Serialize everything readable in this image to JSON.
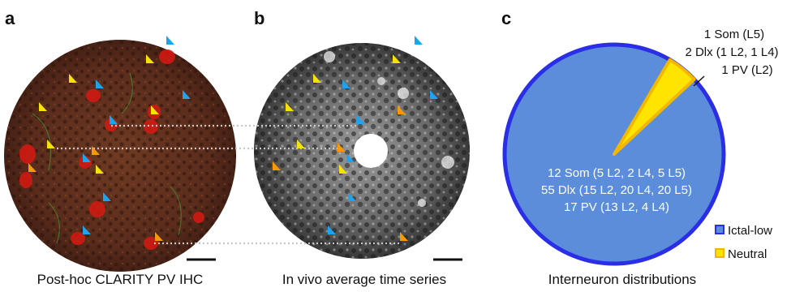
{
  "panels": {
    "a": {
      "letter": "a",
      "caption": "Post-hoc CLARITY PV IHC"
    },
    "b": {
      "letter": "b",
      "caption": "In vivo average time series"
    },
    "c": {
      "letter": "c",
      "caption": "Interneuron distributions"
    }
  },
  "colors": {
    "ictal_low": "#5b8ddb",
    "ictal_low_border": "#2a2ee6",
    "neutral": "#ffe400",
    "neutral_border": "#f2b800",
    "arrow_yellow": "#f7e300",
    "arrow_blue": "#1ea3f0",
    "arrow_orange": "#f59a00",
    "guide_line": "#bdbdbd"
  },
  "chart_data": {
    "type": "pie",
    "title": "Interneuron distributions",
    "slices": [
      {
        "name": "Ictal-low",
        "value": 84,
        "labels": [
          "12 Som (5 L2, 2 L4, 5 L5)",
          "55 Dlx (15 L2, 20 L4, 20 L5)",
          "17 PV (13 L2, 4 L4)"
        ]
      },
      {
        "name": "Neutral",
        "value": 4,
        "labels": [
          "1 Som (L5)",
          "2 Dlx (1 L2, 1 L4)",
          "1 PV (L2)"
        ]
      }
    ],
    "legend": [
      "Ictal-low",
      "Neutral"
    ],
    "legend_position": "bottom-right"
  }
}
